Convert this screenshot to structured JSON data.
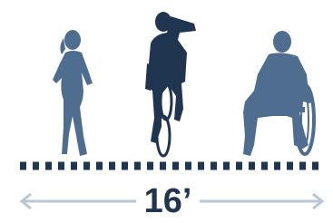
{
  "distance_label": "16’"
}
